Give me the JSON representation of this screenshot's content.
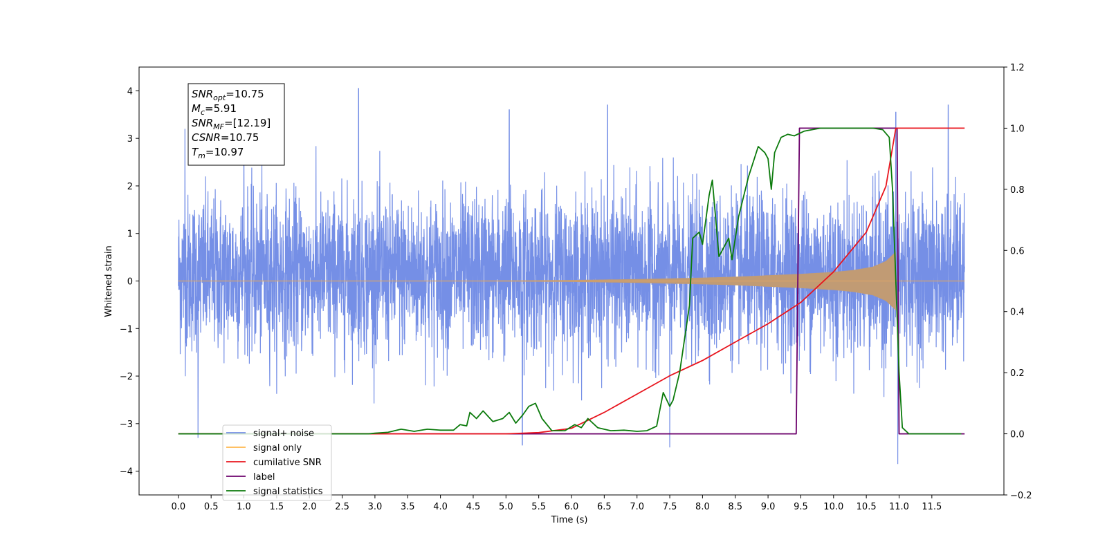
{
  "chart_data": {
    "type": "line",
    "title": "",
    "xlabel": "Time (s)",
    "ylabel": "Whitened strain",
    "xlim": [
      -0.6,
      12.6
    ],
    "ylim_left": [
      -4.5,
      4.5
    ],
    "ylim_right": [
      -0.2,
      1.2
    ],
    "x_ticks": [
      0.0,
      0.5,
      1.0,
      1.5,
      2.0,
      2.5,
      3.0,
      3.5,
      4.0,
      4.5,
      5.0,
      5.5,
      6.0,
      6.5,
      7.0,
      7.5,
      8.0,
      8.5,
      9.0,
      9.5,
      10.0,
      10.5,
      11.0,
      11.5
    ],
    "x_tick_labels": [
      "0.0",
      "0.5",
      "1.0",
      "1.5",
      "2.0",
      "2.5",
      "3.0",
      "3.5",
      "4.0",
      "4.5",
      "5.0",
      "5.5",
      "6.0",
      "6.5",
      "7.0",
      "7.5",
      "8.0",
      "8.5",
      "9.0",
      "9.5",
      "10.0",
      "10.5",
      "11.0",
      "11.5"
    ],
    "y_left_ticks": [
      -4,
      -3,
      -2,
      -1,
      0,
      1,
      2,
      3,
      4
    ],
    "y_left_tick_labels": [
      "−4",
      "−3",
      "−2",
      "−1",
      "0",
      "1",
      "2",
      "3",
      "4"
    ],
    "y_right_ticks": [
      -0.2,
      0.0,
      0.2,
      0.4,
      0.6,
      0.8,
      1.0,
      1.2
    ],
    "y_right_tick_labels": [
      "−0.2",
      "0.0",
      "0.2",
      "0.4",
      "0.6",
      "0.8",
      "1.0",
      "1.2"
    ],
    "grid": false,
    "legend_position": "lower-left",
    "annotation": {
      "lines": [
        {
          "var": "SNR",
          "sub": "opt",
          "value": "=10.75"
        },
        {
          "var": "M",
          "sub": "c",
          "value": "=5.91"
        },
        {
          "var": "SNR",
          "sub": "MF",
          "value": "=[12.19]"
        },
        {
          "var": "CSNR",
          "sub": "",
          "value": "=10.75"
        },
        {
          "var": "T",
          "sub": "m",
          "value": "=10.97"
        }
      ]
    },
    "series": [
      {
        "name": "signal+ noise",
        "axis": "left",
        "color": "#3a5fdc",
        "opacity": 0.7,
        "description_of_shape": "dense noise between about -2.0 and +2.8 with peaks near 4.05 at t=2.75",
        "x_range": [
          0.0,
          12.0
        ],
        "approx_band": [
          -2.0,
          2.8
        ],
        "notable_peaks": [
          {
            "x": 0.1,
            "y": 3.2
          },
          {
            "x": 1.0,
            "y": 3.5
          },
          {
            "x": 2.75,
            "y": 4.05
          },
          {
            "x": 5.05,
            "y": 3.6
          },
          {
            "x": 6.55,
            "y": 3.7
          },
          {
            "x": 10.95,
            "y": 3.55
          },
          {
            "x": 11.75,
            "y": 3.7
          },
          {
            "x": 10.98,
            "y": -3.85
          },
          {
            "x": 7.5,
            "y": -3.5
          },
          {
            "x": 5.25,
            "y": -3.45
          },
          {
            "x": 0.3,
            "y": -3.3
          }
        ]
      },
      {
        "name": "signal only",
        "axis": "left",
        "color": "#ffb74d",
        "description_of_shape": "chirp growing from 0 amplitude to about 0.65 at t=10.95 then ends",
        "envelope": {
          "x": [
            0.0,
            4.0,
            5.0,
            6.0,
            7.0,
            8.0,
            8.5,
            9.0,
            9.5,
            10.0,
            10.3,
            10.6,
            10.8,
            10.95
          ],
          "y": [
            0.0,
            0.005,
            0.01,
            0.02,
            0.04,
            0.07,
            0.09,
            0.12,
            0.15,
            0.19,
            0.23,
            0.3,
            0.42,
            0.62
          ]
        }
      },
      {
        "name": "cumilative SNR",
        "axis": "right",
        "color": "#e8141d",
        "x": [
          0.0,
          5.0,
          5.5,
          6.0,
          6.5,
          7.0,
          7.5,
          8.0,
          8.5,
          9.0,
          9.5,
          10.0,
          10.5,
          10.8,
          10.95,
          11.0,
          11.5,
          12.0
        ],
        "y": [
          0.0,
          0.0,
          0.004,
          0.018,
          0.07,
          0.13,
          0.19,
          0.24,
          0.3,
          0.36,
          0.43,
          0.53,
          0.66,
          0.81,
          1.0,
          1.0,
          1.0,
          1.0
        ]
      },
      {
        "name": "label",
        "axis": "right",
        "color": "#6b006b",
        "x": [
          0.0,
          9.43,
          9.48,
          10.97,
          11.0,
          12.0
        ],
        "y": [
          0.0,
          0.0,
          1.0,
          1.0,
          0.0,
          0.0
        ]
      },
      {
        "name": "signal statistics",
        "axis": "right",
        "color": "#0b7a0b",
        "x": [
          0.0,
          2.9,
          3.0,
          3.2,
          3.4,
          3.6,
          3.8,
          4.0,
          4.2,
          4.3,
          4.4,
          4.45,
          4.55,
          4.65,
          4.8,
          4.95,
          5.05,
          5.15,
          5.25,
          5.35,
          5.45,
          5.55,
          5.7,
          5.9,
          6.05,
          6.15,
          6.25,
          6.4,
          6.6,
          6.8,
          7.0,
          7.15,
          7.3,
          7.4,
          7.5,
          7.55,
          7.65,
          7.8,
          7.85,
          7.95,
          8.0,
          8.1,
          8.15,
          8.25,
          8.4,
          8.45,
          8.55,
          8.7,
          8.85,
          8.95,
          9.0,
          9.05,
          9.1,
          9.2,
          9.3,
          9.4,
          9.55,
          9.8,
          10.0,
          10.3,
          10.6,
          10.75,
          10.85,
          10.9,
          10.95,
          11.0,
          11.05,
          11.15,
          11.95
        ],
        "y": [
          0.0,
          0.0,
          0.002,
          0.005,
          0.015,
          0.008,
          0.015,
          0.012,
          0.012,
          0.03,
          0.026,
          0.07,
          0.05,
          0.075,
          0.04,
          0.05,
          0.07,
          0.035,
          0.06,
          0.09,
          0.1,
          0.05,
          0.01,
          0.01,
          0.03,
          0.02,
          0.05,
          0.02,
          0.01,
          0.012,
          0.008,
          0.01,
          0.025,
          0.135,
          0.09,
          0.11,
          0.2,
          0.42,
          0.64,
          0.66,
          0.62,
          0.78,
          0.83,
          0.58,
          0.64,
          0.57,
          0.71,
          0.84,
          0.94,
          0.92,
          0.9,
          0.8,
          0.92,
          0.97,
          0.98,
          0.975,
          0.99,
          1.0,
          1.0,
          1.0,
          1.0,
          0.995,
          0.97,
          0.8,
          0.5,
          0.2,
          0.02,
          0.0,
          0.0
        ]
      }
    ],
    "legend": [
      {
        "label": "signal+ noise",
        "color": "#3a5fdc",
        "opacity": 0.7
      },
      {
        "label": "signal only",
        "color": "#ffb74d",
        "opacity": 1
      },
      {
        "label": "cumilative SNR",
        "color": "#e8141d",
        "opacity": 1
      },
      {
        "label": "label",
        "color": "#6b006b",
        "opacity": 1
      },
      {
        "label": "signal statistics",
        "color": "#0b7a0b",
        "opacity": 1
      }
    ]
  }
}
